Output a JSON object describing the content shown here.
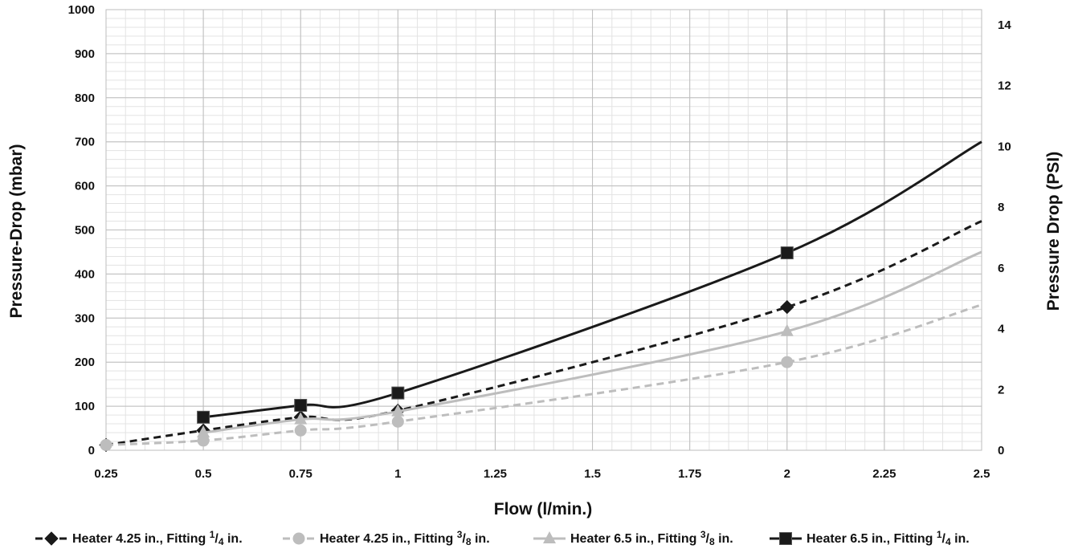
{
  "chart_data": {
    "type": "line",
    "x_ticks": [
      "0.25",
      "0.5",
      "0.75",
      "1",
      "1.25",
      "1.5",
      "1.75",
      "2",
      "2.25",
      "2.5"
    ],
    "y_left_ticks": [
      "0",
      "100",
      "200",
      "300",
      "400",
      "500",
      "600",
      "700",
      "800",
      "900",
      "1000"
    ],
    "y_right_ticks": [
      "0",
      "2",
      "4",
      "6",
      "8",
      "10",
      "12",
      "14"
    ],
    "xlabel": "Flow (l/min.)",
    "ylabel_left": "Pressure-Drop (mbar)",
    "ylabel_right": "Pressure Drop (PSI)",
    "xlim": [
      0.25,
      2.5
    ],
    "ylim_left": [
      0,
      1000
    ],
    "ylim_right": [
      0,
      14.5
    ],
    "grid": true,
    "legend_position": "bottom",
    "series": [
      {
        "name": "Heater 4.25 in., Fitting 1/4 in.",
        "legend_parts": [
          "Heater 4.25 in., Fitting ",
          "1",
          "/",
          "4",
          " in."
        ],
        "color": "#1a1a1a",
        "dash": "dashed",
        "marker": "diamond",
        "x": [
          0.25,
          0.5,
          0.75,
          1,
          2
        ],
        "y": [
          12,
          45,
          75,
          90,
          325
        ],
        "extend_to": [
          2.5,
          520
        ]
      },
      {
        "name": "Heater 4.25 in., Fitting 3/8 in.",
        "legend_parts": [
          "Heater 4.25 in., Fitting ",
          "3",
          "/",
          "8",
          " in."
        ],
        "color": "#bdbdbd",
        "dash": "dashed",
        "marker": "circle",
        "x": [
          0.25,
          0.5,
          0.75,
          1,
          2
        ],
        "y": [
          12,
          22,
          45,
          65,
          200
        ],
        "extend_to": [
          2.5,
          330
        ]
      },
      {
        "name": "Heater 6.5 in., Fitting 3/8 in.",
        "legend_parts": [
          "Heater 6.5 in., Fitting ",
          "3",
          "/",
          "8",
          " in."
        ],
        "color": "#bdbdbd",
        "dash": "solid",
        "marker": "triangle",
        "x": [
          0.5,
          0.75,
          1,
          2
        ],
        "y": [
          40,
          70,
          88,
          270
        ],
        "extend_to": [
          2.5,
          450
        ]
      },
      {
        "name": "Heater 6.5 in., Fitting 1/4 in.",
        "legend_parts": [
          "Heater 6.5 in., Fitting ",
          "1",
          "/",
          "4",
          " in."
        ],
        "color": "#1a1a1a",
        "dash": "solid",
        "marker": "square",
        "x": [
          0.5,
          0.75,
          1,
          2
        ],
        "y": [
          75,
          102,
          130,
          448
        ],
        "extend_to": [
          2.5,
          700
        ]
      }
    ]
  }
}
